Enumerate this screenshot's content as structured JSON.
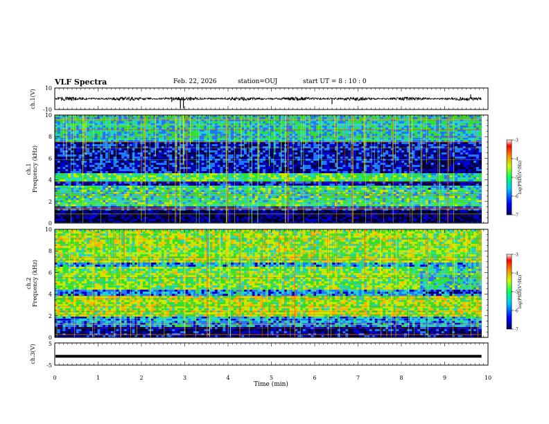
{
  "header": {
    "title": "VLF Spectra",
    "date": "Feb. 22, 2026",
    "station": "station=OUJ",
    "start": "start UT =  8 : 10 : 0"
  },
  "colors": {
    "spectrum": [
      "#000020",
      "#00004a",
      "#0000c8",
      "#1e78ff",
      "#22d0d0",
      "#30e030",
      "#c8e800",
      "#ffb000",
      "#e02000",
      "#7a0000"
    ]
  },
  "chart_data": [
    {
      "type": "line",
      "id": "ch1-waveform",
      "ylabel": "ch.1(V)",
      "ylim": [
        -10,
        10
      ],
      "yticks": [
        "10",
        "-10"
      ],
      "xlim": [
        0,
        10
      ],
      "baseline": 0,
      "amplitude": 1.2,
      "spikes": [
        {
          "x": 2.7,
          "y": -3
        },
        {
          "x": 2.9,
          "y": -9
        },
        {
          "x": 2.97,
          "y": -9
        },
        {
          "x": 6.4,
          "y": -5
        },
        {
          "x": 9.6,
          "y": 4
        }
      ]
    },
    {
      "type": "heatmap",
      "id": "ch1-spectrogram",
      "ylabel_top": "ch.1",
      "ylabel": "Frequency (kHz)",
      "ylim": [
        0,
        10
      ],
      "xlim": [
        0,
        9.85
      ],
      "yticks": [
        "0",
        "2",
        "4",
        "6",
        "8",
        "10"
      ],
      "colorbar": {
        "label": "log(PSD)(V²/Hz)",
        "range": [
          -7,
          -3
        ],
        "ticks": [
          "-3",
          "-4",
          "-5",
          "-6",
          "-7"
        ]
      }
    },
    {
      "type": "heatmap",
      "id": "ch2-spectrogram",
      "ylabel_top": "ch.2",
      "ylabel": "Frequency (kHz)",
      "ylim": [
        0,
        10
      ],
      "xlim": [
        0,
        9.85
      ],
      "yticks": [
        "0",
        "2",
        "4",
        "6",
        "8",
        "10"
      ],
      "colorbar": {
        "label": "log(PSD)(V²/Hz)",
        "range": [
          -7,
          -3
        ],
        "ticks": [
          "-3",
          "-4",
          "-5",
          "-6",
          "-7"
        ]
      }
    },
    {
      "type": "line",
      "id": "ch3-signal",
      "ylabel": "ch.3(V)",
      "ylim": [
        -5,
        5
      ],
      "yticks": [
        "5",
        "-5"
      ],
      "xlim": [
        0,
        10
      ],
      "level": -1
    }
  ],
  "xaxis": {
    "label": "Time (min)",
    "ticks": [
      "0",
      "1",
      "2",
      "3",
      "4",
      "5",
      "6",
      "7",
      "8",
      "9",
      "10"
    ]
  }
}
